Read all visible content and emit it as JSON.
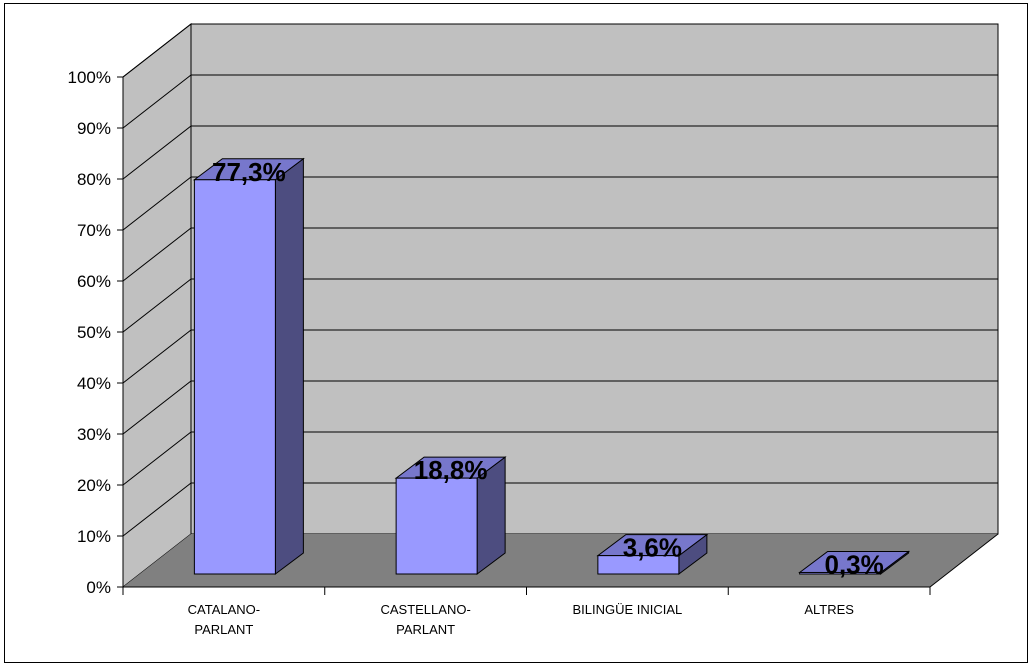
{
  "chart_data": {
    "type": "bar",
    "style": "3d-column",
    "categories": [
      [
        "CATALANO-",
        "PARLANT"
      ],
      [
        "CASTELLANO-",
        "PARLANT"
      ],
      [
        "BILINGÜE INICIAL"
      ],
      [
        "ALTRES"
      ]
    ],
    "values": [
      77.3,
      18.8,
      3.6,
      0.3
    ],
    "data_labels": [
      "77,3%",
      "18,8%",
      "3,6%",
      "0,3%"
    ],
    "ylim": [
      0,
      100
    ],
    "yticks": [
      0,
      10,
      20,
      30,
      40,
      50,
      60,
      70,
      80,
      90,
      100
    ],
    "ytick_labels": [
      "0%",
      "10%",
      "20%",
      "30%",
      "40%",
      "50%",
      "60%",
      "70%",
      "80%",
      "90%",
      "100%"
    ],
    "grid": true,
    "legend": "none",
    "colors": {
      "wall": "#c0c0c0",
      "side_wall": "#c0c0c0",
      "floor": "#808080",
      "bar_front": "#9999ff",
      "bar_side": "#4d4d80",
      "bar_top": "#7777cc",
      "grid": "#000000"
    }
  }
}
